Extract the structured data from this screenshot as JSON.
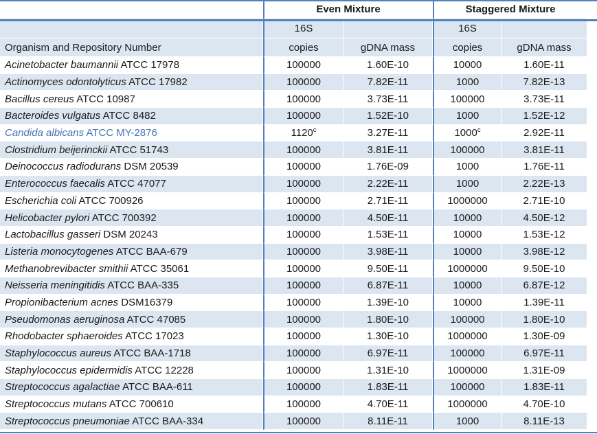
{
  "header": {
    "organism_col": "Organism and Repository Number",
    "even_group": "Even Mixture",
    "staggered_group": "Staggered Mixture",
    "sub_16s": "16S",
    "copies": "copies",
    "gdna": "gDNA mass"
  },
  "colors": {
    "stripe": "#DCE6F1",
    "border": "#4F81BD",
    "highlight_text": "#4674B2",
    "text": "#1a1a1a"
  },
  "footnote_marker": "c",
  "rows": [
    {
      "species": "Acinetobacter baumannii",
      "repo": "ATCC 17978",
      "even_copies": "100000",
      "even_sup": "",
      "even_gdna": "1.60E-10",
      "stag_copies": "10000",
      "stag_sup": "",
      "stag_gdna": "1.60E-11",
      "highlight": false
    },
    {
      "species": "Actinomyces odontolyticus",
      "repo": "ATCC 17982",
      "even_copies": "100000",
      "even_sup": "",
      "even_gdna": "7.82E-11",
      "stag_copies": "1000",
      "stag_sup": "",
      "stag_gdna": "7.82E-13",
      "highlight": false
    },
    {
      "species": "Bacillus cereus",
      "repo": "ATCC 10987",
      "even_copies": "100000",
      "even_sup": "",
      "even_gdna": "3.73E-11",
      "stag_copies": "100000",
      "stag_sup": "",
      "stag_gdna": "3.73E-11",
      "highlight": false
    },
    {
      "species": "Bacteroides vulgatus",
      "repo": "ATCC 8482",
      "even_copies": "100000",
      "even_sup": "",
      "even_gdna": "1.52E-10",
      "stag_copies": "1000",
      "stag_sup": "",
      "stag_gdna": "1.52E-12",
      "highlight": false
    },
    {
      "species": "Candida albicans",
      "repo": "ATCC MY-2876",
      "even_copies": "1120",
      "even_sup": "c",
      "even_gdna": "3.27E-11",
      "stag_copies": "1000",
      "stag_sup": "c",
      "stag_gdna": "2.92E-11",
      "highlight": true
    },
    {
      "species": "Clostridium beijerinckii",
      "repo": "ATCC 51743",
      "even_copies": "100000",
      "even_sup": "",
      "even_gdna": "3.81E-11",
      "stag_copies": "100000",
      "stag_sup": "",
      "stag_gdna": "3.81E-11",
      "highlight": false
    },
    {
      "species": "Deinococcus radiodurans",
      "repo": "DSM 20539",
      "even_copies": "100000",
      "even_sup": "",
      "even_gdna": "1.76E-09",
      "stag_copies": "1000",
      "stag_sup": "",
      "stag_gdna": "1.76E-11",
      "highlight": false
    },
    {
      "species": "Enterococcus faecalis",
      "repo": "ATCC 47077",
      "even_copies": "100000",
      "even_sup": "",
      "even_gdna": "2.22E-11",
      "stag_copies": "1000",
      "stag_sup": "",
      "stag_gdna": "2.22E-13",
      "highlight": false
    },
    {
      "species": "Escherichia coli",
      "repo": "ATCC 700926",
      "even_copies": "100000",
      "even_sup": "",
      "even_gdna": "2.71E-11",
      "stag_copies": "1000000",
      "stag_sup": "",
      "stag_gdna": "2.71E-10",
      "highlight": false
    },
    {
      "species": "Helicobacter pylori",
      "repo": "ATCC 700392",
      "even_copies": "100000",
      "even_sup": "",
      "even_gdna": "4.50E-11",
      "stag_copies": "10000",
      "stag_sup": "",
      "stag_gdna": "4.50E-12",
      "highlight": false
    },
    {
      "species": "Lactobacillus gasseri",
      "repo": "DSM 20243",
      "even_copies": "100000",
      "even_sup": "",
      "even_gdna": "1.53E-11",
      "stag_copies": "10000",
      "stag_sup": "",
      "stag_gdna": "1.53E-12",
      "highlight": false
    },
    {
      "species": "Listeria monocytogenes",
      "repo": "ATCC BAA-679",
      "even_copies": "100000",
      "even_sup": "",
      "even_gdna": "3.98E-11",
      "stag_copies": "10000",
      "stag_sup": "",
      "stag_gdna": "3.98E-12",
      "highlight": false
    },
    {
      "species": "Methanobrevibacter smithii",
      "repo": "ATCC 35061",
      "even_copies": "100000",
      "even_sup": "",
      "even_gdna": "9.50E-11",
      "stag_copies": "1000000",
      "stag_sup": "",
      "stag_gdna": "9.50E-10",
      "highlight": false
    },
    {
      "species": "Neisseria meningitidis",
      "repo": "ATCC BAA-335",
      "even_copies": "100000",
      "even_sup": "",
      "even_gdna": "6.87E-11",
      "stag_copies": "10000",
      "stag_sup": "",
      "stag_gdna": "6.87E-12",
      "highlight": false
    },
    {
      "species": "Propionibacterium acnes",
      "repo": "DSM16379",
      "even_copies": "100000",
      "even_sup": "",
      "even_gdna": "1.39E-10",
      "stag_copies": "10000",
      "stag_sup": "",
      "stag_gdna": "1.39E-11",
      "highlight": false
    },
    {
      "species": "Pseudomonas aeruginosa",
      "repo": "ATCC 47085",
      "even_copies": "100000",
      "even_sup": "",
      "even_gdna": "1.80E-10",
      "stag_copies": "100000",
      "stag_sup": "",
      "stag_gdna": "1.80E-10",
      "highlight": false
    },
    {
      "species": "Rhodobacter sphaeroides",
      "repo": "ATCC 17023",
      "even_copies": "100000",
      "even_sup": "",
      "even_gdna": "1.30E-10",
      "stag_copies": "1000000",
      "stag_sup": "",
      "stag_gdna": "1.30E-09",
      "highlight": false
    },
    {
      "species": "Staphylococcus aureus",
      "repo": "ATCC BAA-1718",
      "even_copies": "100000",
      "even_sup": "",
      "even_gdna": "6.97E-11",
      "stag_copies": "100000",
      "stag_sup": "",
      "stag_gdna": "6.97E-11",
      "highlight": false
    },
    {
      "species": "Staphylococcus epidermidis",
      "repo": "ATCC 12228",
      "even_copies": "100000",
      "even_sup": "",
      "even_gdna": "1.31E-10",
      "stag_copies": "1000000",
      "stag_sup": "",
      "stag_gdna": "1.31E-09",
      "highlight": false
    },
    {
      "species": "Streptococcus agalactiae",
      "repo": "ATCC BAA-611",
      "even_copies": "100000",
      "even_sup": "",
      "even_gdna": "1.83E-11",
      "stag_copies": "100000",
      "stag_sup": "",
      "stag_gdna": "1.83E-11",
      "highlight": false
    },
    {
      "species": "Streptococcus mutans",
      "repo": "ATCC 700610",
      "even_copies": "100000",
      "even_sup": "",
      "even_gdna": "4.70E-11",
      "stag_copies": "1000000",
      "stag_sup": "",
      "stag_gdna": "4.70E-10",
      "highlight": false
    },
    {
      "species": "Streptococcus pneumoniae",
      "repo": "ATCC BAA-334",
      "even_copies": "100000",
      "even_sup": "",
      "even_gdna": "8.11E-11",
      "stag_copies": "1000",
      "stag_sup": "",
      "stag_gdna": "8.11E-13",
      "highlight": false
    }
  ]
}
